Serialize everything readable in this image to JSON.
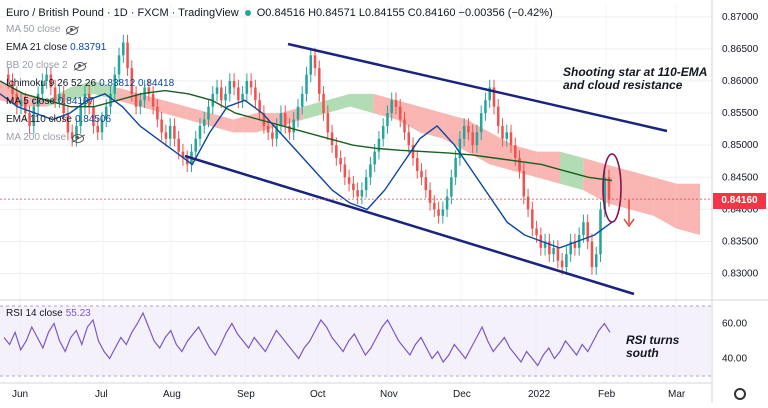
{
  "header": {
    "symbol": "Euro / British Pound · 1D · FXCM · TradingView",
    "ohlc": "O0.84516  H0.84571  L0.84155  C0.84160  −0.00356 (−0.42%)"
  },
  "indicators": [
    {
      "name": "MA 50 close",
      "value": "",
      "muted": true
    },
    {
      "name": "EMA 21 close",
      "value": "0.83791",
      "muted": false
    },
    {
      "name": "BB 20 close 2",
      "value": "",
      "muted": true
    },
    {
      "name": "Ichimoku 9 26 52 26",
      "value": "0.83812  0.84418",
      "muted": false
    },
    {
      "name": "MA 5 close",
      "value": "0.84107",
      "muted": false
    },
    {
      "name": "EMA 110 close",
      "value": "0.84506",
      "muted": false
    },
    {
      "name": "MA 200 close",
      "value": "",
      "muted": true
    }
  ],
  "annotations": {
    "top": "Shooting star at 110-EMA and cloud resistance",
    "top_lines": [
      "Shooting star at 110-EMA",
      "and cloud resistance"
    ],
    "rsi_lines": [
      "RSI turns",
      "south"
    ]
  },
  "rsi_legend": {
    "name": "RSI 14 close",
    "value": "55.23"
  },
  "price_tag": "0.84160",
  "colors": {
    "up": "#26a69a",
    "down": "#ef5350",
    "ema110": "#1b5e20",
    "ema21": "#0d47a1",
    "channel": "#1a237e",
    "rsi": "#7e57c2"
  },
  "chart_data": {
    "type": "candlestick",
    "x_ticks": [
      "Jun",
      "Jul",
      "Aug",
      "Sep",
      "Oct",
      "Nov",
      "Dec",
      "2022",
      "Feb",
      "Mar"
    ],
    "y_ticks": [
      "0.87000",
      "0.86500",
      "0.86000",
      "0.85500",
      "0.85000",
      "0.84500",
      "0.84000",
      "0.83500",
      "0.83000"
    ],
    "ylim": [
      0.8265,
      0.872
    ],
    "last_price": 0.8416,
    "closes": [
      0.861,
      0.86,
      0.858,
      0.856,
      0.857,
      0.855,
      0.853,
      0.856,
      0.858,
      0.86,
      0.861,
      0.859,
      0.857,
      0.858,
      0.855,
      0.852,
      0.851,
      0.853,
      0.856,
      0.858,
      0.856,
      0.853,
      0.852,
      0.854,
      0.856,
      0.858,
      0.861,
      0.864,
      0.866,
      0.862,
      0.858,
      0.856,
      0.857,
      0.859,
      0.858,
      0.856,
      0.854,
      0.852,
      0.851,
      0.853,
      0.851,
      0.849,
      0.848,
      0.847,
      0.849,
      0.851,
      0.853,
      0.854,
      0.856,
      0.858,
      0.859,
      0.857,
      0.858,
      0.86,
      0.859,
      0.857,
      0.858,
      0.86,
      0.859,
      0.857,
      0.855,
      0.853,
      0.852,
      0.851,
      0.853,
      0.855,
      0.853,
      0.852,
      0.854,
      0.856,
      0.858,
      0.861,
      0.864,
      0.862,
      0.858,
      0.855,
      0.852,
      0.85,
      0.848,
      0.847,
      0.845,
      0.844,
      0.843,
      0.842,
      0.843,
      0.845,
      0.847,
      0.849,
      0.851,
      0.853,
      0.855,
      0.857,
      0.856,
      0.854,
      0.852,
      0.85,
      0.848,
      0.846,
      0.845,
      0.843,
      0.841,
      0.84,
      0.839,
      0.84,
      0.842,
      0.845,
      0.848,
      0.851,
      0.853,
      0.852,
      0.85,
      0.852,
      0.855,
      0.857,
      0.859,
      0.856,
      0.853,
      0.851,
      0.852,
      0.85,
      0.848,
      0.846,
      0.842,
      0.84,
      0.837,
      0.836,
      0.834,
      0.835,
      0.833,
      0.834,
      0.832,
      0.831,
      0.833,
      0.835,
      0.834,
      0.836,
      0.838,
      0.835,
      0.831,
      0.833,
      0.84,
      0.845,
      0.8416
    ],
    "ema110": [
      0.86,
      0.858,
      0.857,
      0.856,
      0.856,
      0.857,
      0.858,
      0.8585,
      0.858,
      0.857,
      0.855,
      0.854,
      0.853,
      0.852,
      0.851,
      0.85,
      0.8495,
      0.8492,
      0.849,
      0.8488,
      0.8485,
      0.848,
      0.8475,
      0.847,
      0.846,
      0.845,
      0.8445
    ],
    "ema21": [
      0.858,
      0.856,
      0.855,
      0.854,
      0.855,
      0.857,
      0.858,
      0.856,
      0.853,
      0.851,
      0.849,
      0.847,
      0.852,
      0.856,
      0.857,
      0.855,
      0.852,
      0.849,
      0.846,
      0.843,
      0.841,
      0.84,
      0.843,
      0.847,
      0.851,
      0.853,
      0.85,
      0.846,
      0.842,
      0.838,
      0.836,
      0.835,
      0.834,
      0.835,
      0.836,
      0.838
    ],
    "cloud_upper": [
      0.86,
      0.858,
      0.857,
      0.859,
      0.86,
      0.859,
      0.858,
      0.857,
      0.856,
      0.855,
      0.854,
      0.855,
      0.855,
      0.856,
      0.857,
      0.858,
      0.858,
      0.857,
      0.856,
      0.855,
      0.854,
      0.852,
      0.85,
      0.849,
      0.849,
      0.848,
      0.847,
      0.846,
      0.845,
      0.844,
      0.844
    ],
    "cloud_lower": [
      0.857,
      0.856,
      0.856,
      0.857,
      0.858,
      0.857,
      0.856,
      0.855,
      0.854,
      0.853,
      0.852,
      0.852,
      0.853,
      0.854,
      0.855,
      0.856,
      0.855,
      0.854,
      0.852,
      0.851,
      0.849,
      0.847,
      0.846,
      0.845,
      0.844,
      0.843,
      0.841,
      0.84,
      0.839,
      0.837,
      0.836
    ],
    "rsi": [
      52,
      48,
      55,
      45,
      50,
      58,
      52,
      46,
      55,
      60,
      50,
      44,
      52,
      56,
      48,
      58,
      62,
      50,
      44,
      40,
      46,
      52,
      48,
      55,
      60,
      66,
      58,
      50,
      46,
      52,
      56,
      48,
      44,
      50,
      54,
      58,
      52,
      46,
      42,
      48,
      55,
      60,
      54,
      50,
      46,
      52,
      48,
      44,
      50,
      56,
      52,
      48,
      44,
      40,
      46,
      50,
      56,
      62,
      58,
      52,
      48,
      44,
      50,
      54,
      48,
      42,
      46,
      52,
      58,
      62,
      56,
      50,
      46,
      42,
      48,
      52,
      46,
      40,
      44,
      38,
      42,
      48,
      44,
      40,
      46,
      52,
      58,
      50,
      44,
      48,
      52,
      46,
      42,
      38,
      44,
      40,
      36,
      42,
      46,
      40,
      44,
      50,
      46,
      42,
      48,
      44,
      50,
      56,
      60,
      55
    ],
    "rsi_ticks": [
      "60.00",
      "40.00"
    ]
  }
}
